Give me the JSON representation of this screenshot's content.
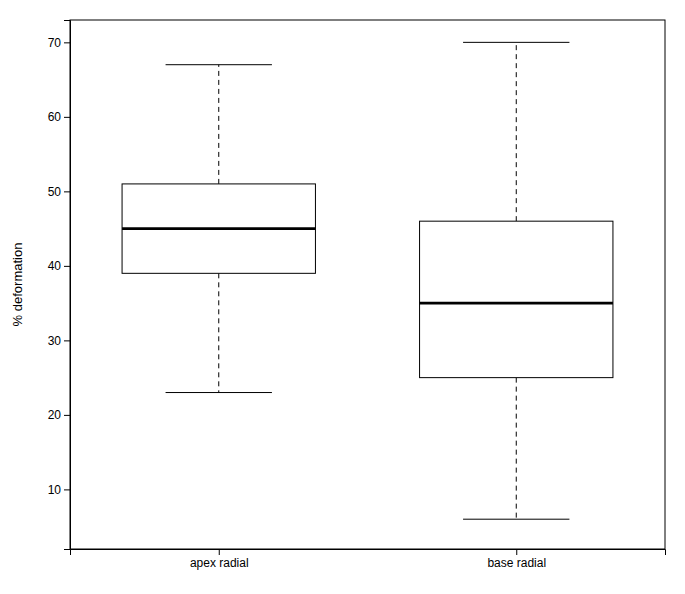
{
  "chart_data": {
    "type": "box",
    "categories": [
      "apex radial",
      "base radial"
    ],
    "boxes": [
      {
        "whisker_low": 23,
        "q1": 39,
        "median": 45,
        "q3": 51,
        "whisker_high": 67
      },
      {
        "whisker_low": 6,
        "q1": 25,
        "median": 35,
        "q3": 46,
        "whisker_high": 70
      }
    ],
    "ylabel": "% deformation",
    "ylim": [
      2,
      73
    ],
    "yticks": [
      10,
      20,
      30,
      40,
      50,
      60,
      70
    ],
    "color": "#000000",
    "line_style": "dashed",
    "grid": false
  }
}
